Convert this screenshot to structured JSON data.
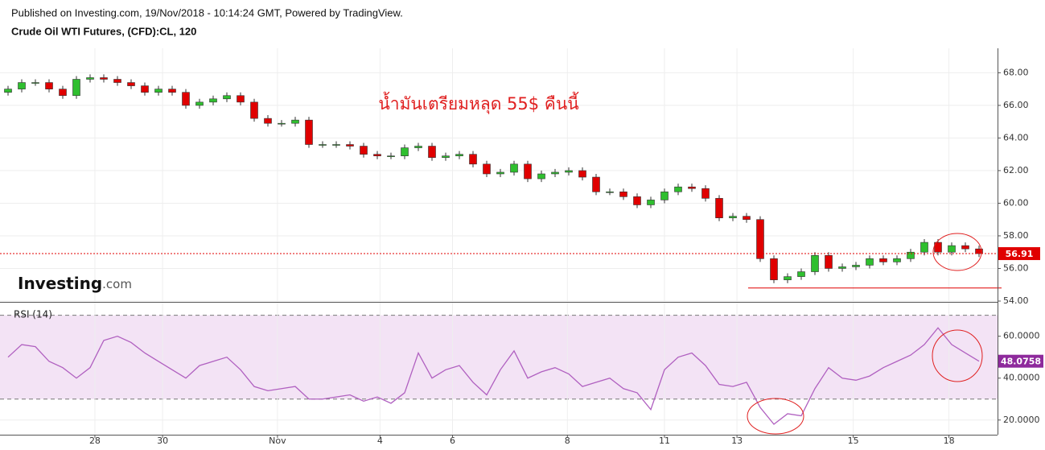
{
  "header": {
    "published": "Published on Investing.com, 19/Nov/2018 - 10:14:24 GMT, Powered by TradingView.",
    "instrument": "Crude Oil WTI Futures, (CFD):CL, 120",
    "logo": [
      "Investing",
      ".com"
    ]
  },
  "chart_data": [
    {
      "type": "candlestick",
      "annotation": "น้ำมันเตรียมหลุด 55$ คืนนี้",
      "up_color": "#2fbf2f",
      "down_color": "#e00000",
      "last_color": "#e00000",
      "xlim": [
        -0.5,
        71.5
      ],
      "ylim": [
        54,
        69.5
      ],
      "grid": true,
      "yticks": [
        {
          "value": 54,
          "label": "54.00"
        },
        {
          "value": 56,
          "label": "56.00"
        },
        {
          "value": 58,
          "label": "58.00"
        },
        {
          "value": 60,
          "label": "60.00"
        },
        {
          "value": 62,
          "label": "62.00"
        },
        {
          "value": 64,
          "label": "64.00"
        },
        {
          "value": 66,
          "label": "66.00"
        },
        {
          "value": 68,
          "label": "68.00"
        }
      ],
      "support_line": 54.8,
      "open": [
        66.8,
        67.0,
        67.4,
        67.4,
        67.0,
        66.6,
        67.6,
        67.7,
        67.6,
        67.4,
        67.2,
        66.8,
        67.0,
        66.8,
        66.0,
        66.2,
        66.4,
        66.6,
        66.2,
        65.2,
        64.9,
        64.9,
        65.1,
        63.6,
        63.6,
        63.6,
        63.5,
        63.0,
        62.9,
        62.9,
        63.4,
        63.5,
        62.8,
        62.9,
        63.0,
        62.4,
        61.8,
        61.9,
        62.4,
        61.5,
        61.8,
        61.9,
        62.0,
        61.6,
        60.7,
        60.7,
        60.4,
        59.9,
        60.2,
        60.7,
        61.0,
        60.9,
        60.3,
        59.1,
        59.2,
        59.0,
        56.6,
        55.3,
        55.5,
        55.8,
        56.8,
        56.0,
        56.1,
        56.2,
        56.6,
        56.4,
        56.6,
        57.0,
        57.6,
        57.0,
        57.4,
        57.2
      ],
      "high": [
        67.2,
        67.6,
        67.6,
        67.6,
        67.2,
        67.8,
        67.9,
        67.9,
        67.8,
        67.6,
        67.4,
        67.2,
        67.2,
        67.0,
        66.4,
        66.6,
        66.8,
        66.8,
        66.4,
        65.4,
        65.1,
        65.3,
        65.3,
        63.8,
        63.8,
        63.8,
        63.7,
        63.2,
        63.1,
        63.6,
        63.7,
        63.7,
        63.1,
        63.2,
        63.2,
        62.6,
        62.1,
        62.6,
        62.6,
        62.0,
        62.1,
        62.2,
        62.2,
        61.8,
        60.9,
        60.9,
        60.6,
        60.4,
        60.9,
        61.2,
        61.2,
        61.1,
        60.5,
        59.4,
        59.4,
        59.2,
        56.8,
        55.7,
        56.0,
        57.0,
        57.0,
        56.3,
        56.4,
        56.8,
        56.8,
        56.8,
        57.2,
        57.8,
        57.8,
        57.6,
        57.6,
        57.4
      ],
      "low": [
        66.6,
        66.8,
        67.2,
        66.8,
        66.4,
        66.4,
        67.4,
        67.4,
        67.2,
        67.0,
        66.6,
        66.6,
        66.6,
        65.8,
        65.8,
        66.0,
        66.2,
        66.0,
        65.0,
        64.7,
        64.7,
        64.7,
        63.4,
        63.4,
        63.4,
        63.3,
        62.8,
        62.7,
        62.7,
        62.7,
        63.2,
        62.6,
        62.6,
        62.7,
        62.2,
        61.6,
        61.6,
        61.7,
        61.3,
        61.3,
        61.6,
        61.7,
        61.4,
        60.5,
        60.5,
        60.2,
        59.7,
        59.7,
        60.0,
        60.5,
        60.7,
        60.1,
        58.9,
        58.9,
        58.8,
        56.4,
        55.1,
        55.1,
        55.3,
        55.6,
        55.8,
        55.8,
        55.9,
        56.0,
        56.2,
        56.2,
        56.4,
        56.8,
        56.8,
        56.8,
        57.0,
        56.7
      ],
      "close": [
        67.0,
        67.4,
        67.4,
        67.0,
        66.6,
        67.6,
        67.7,
        67.6,
        67.4,
        67.2,
        66.8,
        67.0,
        66.8,
        66.0,
        66.2,
        66.4,
        66.6,
        66.2,
        65.2,
        64.9,
        64.9,
        65.1,
        63.6,
        63.6,
        63.6,
        63.5,
        63.0,
        62.9,
        62.9,
        63.4,
        63.5,
        62.8,
        62.9,
        63.0,
        62.4,
        61.8,
        61.9,
        62.4,
        61.5,
        61.8,
        61.9,
        62.0,
        61.6,
        60.7,
        60.7,
        60.4,
        59.9,
        60.2,
        60.7,
        61.0,
        60.9,
        60.3,
        59.1,
        59.2,
        59.0,
        56.6,
        55.3,
        55.5,
        55.8,
        56.8,
        56.0,
        56.1,
        56.2,
        56.6,
        56.4,
        56.6,
        57.0,
        57.6,
        57.0,
        57.4,
        57.2,
        56.91
      ]
    },
    {
      "type": "line",
      "title": "RSI (14)",
      "color": "#b060c0",
      "band": [
        30,
        70
      ],
      "band_color": "#f3e3f5",
      "xlim": [
        -0.5,
        71.5
      ],
      "ylim": [
        13,
        76
      ],
      "grid": true,
      "yticks": [
        {
          "value": 20,
          "label": "20.0000"
        },
        {
          "value": 40,
          "label": "40.0000"
        },
        {
          "value": 60,
          "label": "60.0000"
        }
      ],
      "xticks": [
        {
          "value": 6.35,
          "label": "28"
        },
        {
          "value": 11.3,
          "label": "30"
        },
        {
          "value": 19.7,
          "label": "Nov"
        },
        {
          "value": 27.2,
          "label": "4"
        },
        {
          "value": 32.5,
          "label": "6"
        },
        {
          "value": 40.9,
          "label": "8"
        },
        {
          "value": 48,
          "label": "11"
        },
        {
          "value": 53.3,
          "label": "13"
        },
        {
          "value": 61.8,
          "label": "15"
        },
        {
          "value": 68.8,
          "label": "18"
        }
      ],
      "values": [
        50,
        56,
        55,
        48,
        45,
        40,
        45,
        58,
        60,
        57,
        52,
        48,
        44,
        40,
        46,
        48,
        50,
        44,
        36,
        34,
        35,
        36,
        30,
        30,
        31,
        32,
        29,
        31,
        28,
        33,
        52,
        40,
        44,
        46,
        38,
        32,
        44,
        53,
        40,
        43,
        45,
        42,
        36,
        38,
        40,
        35,
        33,
        25,
        44,
        50,
        52,
        46,
        37,
        36,
        38,
        26,
        18,
        23,
        22,
        35,
        45,
        40,
        39,
        41,
        45,
        48,
        51,
        56,
        64,
        56,
        52,
        48.0758
      ]
    }
  ]
}
